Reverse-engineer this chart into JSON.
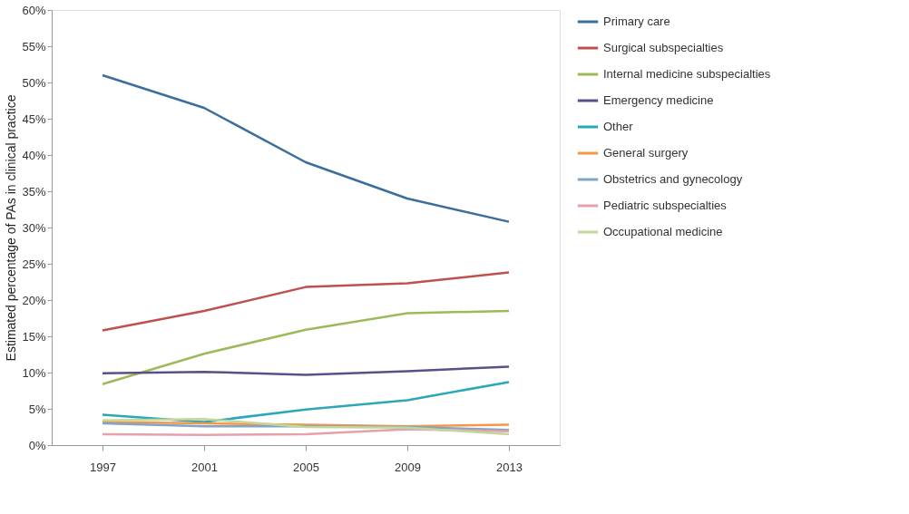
{
  "chart_data": {
    "type": "line",
    "ylabel": "Estimated percentage of PAs in clinical practice",
    "categories": [
      "1997",
      "2001",
      "2005",
      "2009",
      "2013"
    ],
    "ylim": [
      0,
      60
    ],
    "yticks": [
      {
        "value": 0,
        "label": "0%"
      },
      {
        "value": 5,
        "label": "5%"
      },
      {
        "value": 10,
        "label": "10%"
      },
      {
        "value": 15,
        "label": "15%"
      },
      {
        "value": 20,
        "label": "20%"
      },
      {
        "value": 25,
        "label": "25%"
      },
      {
        "value": 30,
        "label": "30%"
      },
      {
        "value": 35,
        "label": "35%"
      },
      {
        "value": 40,
        "label": "40%"
      },
      {
        "value": 45,
        "label": "45%"
      },
      {
        "value": 50,
        "label": "50%"
      },
      {
        "value": 55,
        "label": "55%"
      },
      {
        "value": 60,
        "label": "60%"
      }
    ],
    "grid": false,
    "legend": "right",
    "marker": "none",
    "line_style": "solid",
    "series": [
      {
        "name": "Primary care",
        "color": "#3b6e9c",
        "values": [
          51,
          46.5,
          39,
          34,
          30.8
        ]
      },
      {
        "name": "Surgical subspecialties",
        "color": "#c0504d",
        "values": [
          15.8,
          18.5,
          21.8,
          22.3,
          23.8
        ]
      },
      {
        "name": "Internal medicine subspecialties",
        "color": "#9bbb59",
        "values": [
          8.4,
          12.6,
          15.9,
          18.2,
          18.5
        ]
      },
      {
        "name": "Emergency medicine",
        "color": "#5b4f8a",
        "values": [
          9.9,
          10.1,
          9.7,
          10.2,
          10.8
        ]
      },
      {
        "name": "Other",
        "color": "#2aa7b8",
        "values": [
          4.2,
          3.2,
          4.9,
          6.2,
          8.7
        ]
      },
      {
        "name": "General surgery",
        "color": "#f79646",
        "values": [
          3.2,
          3.0,
          2.8,
          2.6,
          2.8
        ]
      },
      {
        "name": "Obstetrics and gynecology",
        "color": "#7fa6c9",
        "values": [
          3.0,
          2.6,
          2.6,
          2.5,
          2.1
        ]
      },
      {
        "name": "Pediatric subspecialties",
        "color": "#e6a0a8",
        "values": [
          1.5,
          1.4,
          1.5,
          2.2,
          1.9
        ]
      },
      {
        "name": "Occupational medicine",
        "color": "#c3d69b",
        "values": [
          3.4,
          3.6,
          2.5,
          2.4,
          1.5
        ]
      }
    ]
  }
}
